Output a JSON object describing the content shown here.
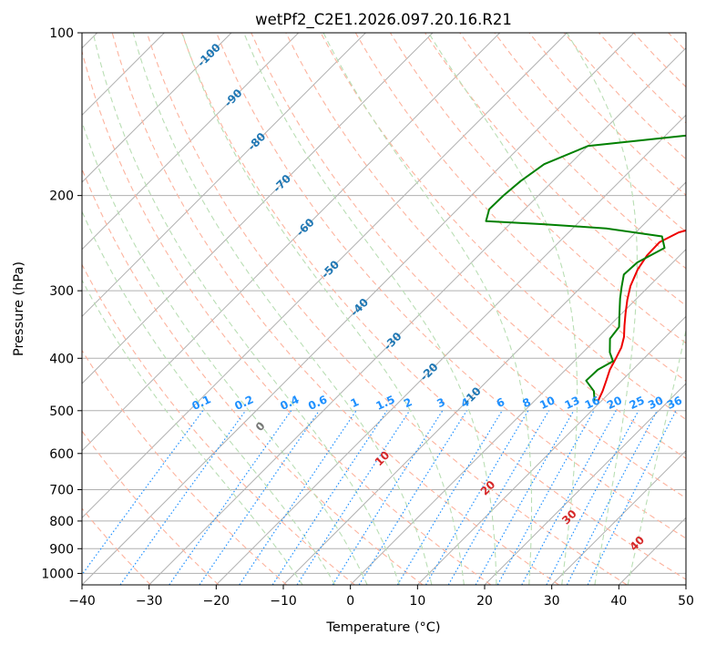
{
  "chart_data": {
    "type": "line",
    "title": "wetPf2_C2E1.2026.097.20.16.R21",
    "xlabel": "Temperature (°C)",
    "ylabel": "Pressure (hPa)",
    "xlim": [
      -40,
      50
    ],
    "ylim": [
      1050,
      100
    ],
    "x_ticks": [
      -40,
      -30,
      -20,
      -10,
      0,
      10,
      20,
      30,
      40,
      50
    ],
    "y_ticks": [
      1000,
      900,
      800,
      700,
      600,
      500,
      400,
      300,
      200,
      100
    ],
    "skew_note": "isotherms slanted at 45 degrees",
    "series": [
      {
        "name": "Temperature",
        "color": "#ee0000",
        "points": [
          [
            9.5,
            480
          ],
          [
            8.7,
            460
          ],
          [
            7.7,
            440
          ],
          [
            6.6,
            420
          ],
          [
            5.8,
            400
          ],
          [
            5.0,
            382
          ],
          [
            3.8,
            365
          ],
          [
            2.2,
            348
          ],
          [
            0.5,
            330
          ],
          [
            -1.2,
            312
          ],
          [
            -2.8,
            294
          ],
          [
            -4.2,
            274
          ],
          [
            -4.9,
            258
          ],
          [
            -5.0,
            244
          ],
          [
            -3.6,
            234
          ],
          [
            0.1,
            225
          ],
          [
            5.0,
            217
          ],
          [
            10.0,
            210
          ],
          [
            12.7,
            203
          ],
          [
            14.5,
            195
          ],
          [
            15.2,
            185
          ],
          [
            15.5,
            170
          ],
          [
            15.5,
            155
          ],
          [
            15.2,
            140
          ],
          [
            16.0,
            127
          ],
          [
            17.2,
            116
          ],
          [
            17.3,
            108
          ],
          [
            18.2,
            100
          ]
        ]
      },
      {
        "name": "Dew point",
        "color": "#008000",
        "points": [
          [
            9.0,
            480
          ],
          [
            7.4,
            460
          ],
          [
            4.7,
            440
          ],
          [
            4.8,
            420
          ],
          [
            5.8,
            405
          ],
          [
            4.0,
            390
          ],
          [
            2.0,
            368
          ],
          [
            1.6,
            350
          ],
          [
            -0.4,
            330
          ],
          [
            -2.5,
            310
          ],
          [
            -4.0,
            295
          ],
          [
            -5.5,
            280
          ],
          [
            -5.3,
            266
          ],
          [
            -3.4,
            250
          ],
          [
            -5.5,
            238
          ],
          [
            -15.0,
            230
          ],
          [
            -25.0,
            226
          ],
          [
            -34.0,
            223
          ],
          [
            -35.3,
            212
          ],
          [
            -35.2,
            200
          ],
          [
            -34.8,
            188
          ],
          [
            -33.8,
            175
          ],
          [
            -30.0,
            162
          ],
          [
            -17.0,
            155
          ],
          [
            -11.0,
            146
          ],
          [
            -9.0,
            136
          ],
          [
            -8.0,
            124
          ],
          [
            -6.5,
            114
          ],
          [
            -3.3,
            105
          ],
          [
            -2.3,
            100
          ]
        ]
      }
    ],
    "dry_adiabats_K": [
      240,
      250,
      260,
      270,
      280,
      290,
      300,
      310,
      320,
      330,
      340,
      350,
      360,
      370,
      380,
      390,
      400,
      410,
      420,
      430,
      440,
      450,
      460,
      470,
      480,
      490,
      500,
      510
    ],
    "moist_adiabats_C": [
      -10,
      -5,
      0,
      5,
      10,
      15,
      20,
      25,
      30,
      35,
      40
    ],
    "isotherm_labels": {
      "color": "#1f77b4",
      "items": [
        {
          "t": -100,
          "p": 110,
          "text": "-100"
        },
        {
          "t": -90,
          "p": 132,
          "text": "-90"
        },
        {
          "t": -80,
          "p": 159,
          "text": "-80"
        },
        {
          "t": -70,
          "p": 190,
          "text": "-70"
        },
        {
          "t": -60,
          "p": 229,
          "text": "-60"
        },
        {
          "t": -50,
          "p": 274,
          "text": "-50"
        },
        {
          "t": -40,
          "p": 322,
          "text": "-40"
        },
        {
          "t": -30,
          "p": 372,
          "text": "-30"
        },
        {
          "t": -20,
          "p": 424,
          "text": "-20"
        },
        {
          "t": -10,
          "p": 470,
          "text": "-10"
        }
      ]
    },
    "mixing_ratio_lines": {
      "color": "#1e90ff",
      "values": [
        0.1,
        0.2,
        0.4,
        0.6,
        1,
        1.5,
        2,
        3,
        4,
        6,
        8,
        10,
        13,
        16,
        20,
        25,
        30,
        36
      ],
      "labels": [
        "0.1",
        "0.2",
        "0.4",
        "0.6",
        "1",
        "1.5",
        "2",
        "3",
        "4",
        "6",
        "8",
        "10",
        "13",
        "16",
        "20",
        "25",
        "30",
        "36"
      ],
      "label_pressure": 500
    },
    "moist_labels": {
      "items": [
        {
          "text": "0",
          "p": 535,
          "color": "#777777",
          "theta_c": 0
        },
        {
          "text": "10",
          "p": 613,
          "color": "#d62728",
          "theta_c": 10
        },
        {
          "text": "20",
          "p": 695,
          "color": "#d62728",
          "theta_c": 20
        },
        {
          "text": "30",
          "p": 787,
          "color": "#d62728",
          "theta_c": 30
        },
        {
          "text": "40",
          "p": 880,
          "color": "#d62728",
          "theta_c": 40
        }
      ]
    }
  }
}
